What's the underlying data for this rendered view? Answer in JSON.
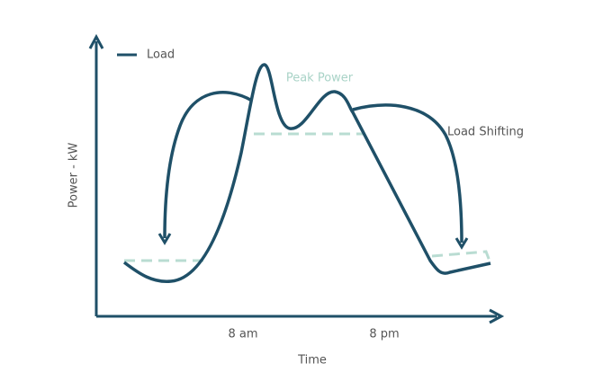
{
  "legend": {
    "label": "Load"
  },
  "annotations": {
    "peak": "Peak Power",
    "shift": "Load Shifting"
  },
  "axes": {
    "y_label": "Power - kW",
    "x_label": "Time",
    "x_ticks": [
      "8 am",
      "8 pm"
    ]
  }
}
